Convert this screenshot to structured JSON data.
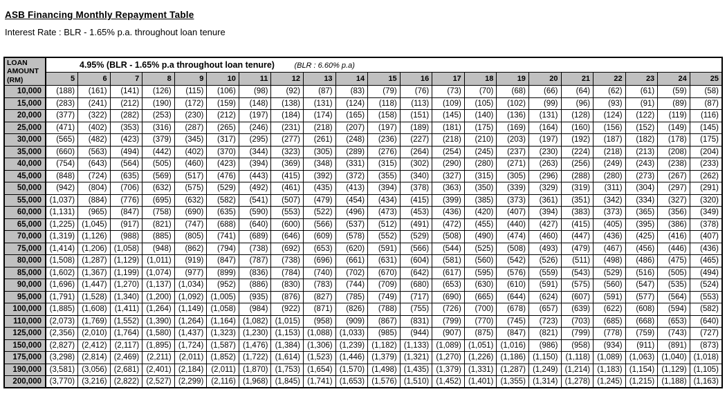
{
  "page": {
    "title": "ASB Financing Monthly Repayment Table",
    "subtitle": "Interest Rate : BLR - 1.65% p.a. throughout loan tenure"
  },
  "colors": {
    "header_bg": "#c0c0c0",
    "border": "#000000",
    "text": "#000000",
    "page_bg": "#ffffff"
  },
  "table": {
    "corner_header": "LOAN\nAMOUNT\n(RM)",
    "rate_header": "4.95% (BLR - 1.65% p.a throughout loan tenure)",
    "blr_note": "(BLR : 6.60% p.a)",
    "tenure_years": [
      "5",
      "6",
      "7",
      "8",
      "9",
      "10",
      "11",
      "12",
      "13",
      "14",
      "15",
      "16",
      "17",
      "18",
      "19",
      "20",
      "21",
      "22",
      "23",
      "24",
      "25"
    ],
    "rows": [
      {
        "amount": "10,000",
        "values": [
          "(188)",
          "(161)",
          "(141)",
          "(126)",
          "(115)",
          "(106)",
          "(98)",
          "(92)",
          "(87)",
          "(83)",
          "(79)",
          "(76)",
          "(73)",
          "(70)",
          "(68)",
          "(66)",
          "(64)",
          "(62)",
          "(61)",
          "(59)",
          "(58)"
        ]
      },
      {
        "amount": "15,000",
        "values": [
          "(283)",
          "(241)",
          "(212)",
          "(190)",
          "(172)",
          "(159)",
          "(148)",
          "(138)",
          "(131)",
          "(124)",
          "(118)",
          "(113)",
          "(109)",
          "(105)",
          "(102)",
          "(99)",
          "(96)",
          "(93)",
          "(91)",
          "(89)",
          "(87)"
        ]
      },
      {
        "amount": "20,000",
        "values": [
          "(377)",
          "(322)",
          "(282)",
          "(253)",
          "(230)",
          "(212)",
          "(197)",
          "(184)",
          "(174)",
          "(165)",
          "(158)",
          "(151)",
          "(145)",
          "(140)",
          "(136)",
          "(131)",
          "(128)",
          "(124)",
          "(122)",
          "(119)",
          "(116)"
        ]
      },
      {
        "amount": "25,000",
        "values": [
          "(471)",
          "(402)",
          "(353)",
          "(316)",
          "(287)",
          "(265)",
          "(246)",
          "(231)",
          "(218)",
          "(207)",
          "(197)",
          "(189)",
          "(181)",
          "(175)",
          "(169)",
          "(164)",
          "(160)",
          "(156)",
          "(152)",
          "(149)",
          "(145)"
        ]
      },
      {
        "amount": "30,000",
        "values": [
          "(565)",
          "(482)",
          "(423)",
          "(379)",
          "(345)",
          "(317)",
          "(295)",
          "(277)",
          "(261)",
          "(248)",
          "(236)",
          "(227)",
          "(218)",
          "(210)",
          "(203)",
          "(197)",
          "(192)",
          "(187)",
          "(182)",
          "(178)",
          "(175)"
        ]
      },
      {
        "amount": "35,000",
        "values": [
          "(660)",
          "(563)",
          "(494)",
          "(442)",
          "(402)",
          "(370)",
          "(344)",
          "(323)",
          "(305)",
          "(289)",
          "(276)",
          "(264)",
          "(254)",
          "(245)",
          "(237)",
          "(230)",
          "(224)",
          "(218)",
          "(213)",
          "(208)",
          "(204)"
        ]
      },
      {
        "amount": "40,000",
        "values": [
          "(754)",
          "(643)",
          "(564)",
          "(505)",
          "(460)",
          "(423)",
          "(394)",
          "(369)",
          "(348)",
          "(331)",
          "(315)",
          "(302)",
          "(290)",
          "(280)",
          "(271)",
          "(263)",
          "(256)",
          "(249)",
          "(243)",
          "(238)",
          "(233)"
        ]
      },
      {
        "amount": "45,000",
        "values": [
          "(848)",
          "(724)",
          "(635)",
          "(569)",
          "(517)",
          "(476)",
          "(443)",
          "(415)",
          "(392)",
          "(372)",
          "(355)",
          "(340)",
          "(327)",
          "(315)",
          "(305)",
          "(296)",
          "(288)",
          "(280)",
          "(273)",
          "(267)",
          "(262)"
        ]
      },
      {
        "amount": "50,000",
        "values": [
          "(942)",
          "(804)",
          "(706)",
          "(632)",
          "(575)",
          "(529)",
          "(492)",
          "(461)",
          "(435)",
          "(413)",
          "(394)",
          "(378)",
          "(363)",
          "(350)",
          "(339)",
          "(329)",
          "(319)",
          "(311)",
          "(304)",
          "(297)",
          "(291)"
        ]
      },
      {
        "amount": "55,000",
        "values": [
          "(1,037)",
          "(884)",
          "(776)",
          "(695)",
          "(632)",
          "(582)",
          "(541)",
          "(507)",
          "(479)",
          "(454)",
          "(434)",
          "(415)",
          "(399)",
          "(385)",
          "(373)",
          "(361)",
          "(351)",
          "(342)",
          "(334)",
          "(327)",
          "(320)"
        ]
      },
      {
        "amount": "60,000",
        "values": [
          "(1,131)",
          "(965)",
          "(847)",
          "(758)",
          "(690)",
          "(635)",
          "(590)",
          "(553)",
          "(522)",
          "(496)",
          "(473)",
          "(453)",
          "(436)",
          "(420)",
          "(407)",
          "(394)",
          "(383)",
          "(373)",
          "(365)",
          "(356)",
          "(349)"
        ]
      },
      {
        "amount": "65,000",
        "values": [
          "(1,225)",
          "(1,045)",
          "(917)",
          "(821)",
          "(747)",
          "(688)",
          "(640)",
          "(600)",
          "(566)",
          "(537)",
          "(512)",
          "(491)",
          "(472)",
          "(455)",
          "(440)",
          "(427)",
          "(415)",
          "(405)",
          "(395)",
          "(386)",
          "(378)"
        ]
      },
      {
        "amount": "70,000",
        "values": [
          "(1,319)",
          "(1,126)",
          "(988)",
          "(885)",
          "(805)",
          "(741)",
          "(689)",
          "(646)",
          "(609)",
          "(578)",
          "(552)",
          "(529)",
          "(508)",
          "(490)",
          "(474)",
          "(460)",
          "(447)",
          "(436)",
          "(425)",
          "(416)",
          "(407)"
        ]
      },
      {
        "amount": "75,000",
        "values": [
          "(1,414)",
          "(1,206)",
          "(1,058)",
          "(948)",
          "(862)",
          "(794)",
          "(738)",
          "(692)",
          "(653)",
          "(620)",
          "(591)",
          "(566)",
          "(544)",
          "(525)",
          "(508)",
          "(493)",
          "(479)",
          "(467)",
          "(456)",
          "(446)",
          "(436)"
        ]
      },
      {
        "amount": "80,000",
        "values": [
          "(1,508)",
          "(1,287)",
          "(1,129)",
          "(1,011)",
          "(919)",
          "(847)",
          "(787)",
          "(738)",
          "(696)",
          "(661)",
          "(631)",
          "(604)",
          "(581)",
          "(560)",
          "(542)",
          "(526)",
          "(511)",
          "(498)",
          "(486)",
          "(475)",
          "(465)"
        ]
      },
      {
        "amount": "85,000",
        "values": [
          "(1,602)",
          "(1,367)",
          "(1,199)",
          "(1,074)",
          "(977)",
          "(899)",
          "(836)",
          "(784)",
          "(740)",
          "(702)",
          "(670)",
          "(642)",
          "(617)",
          "(595)",
          "(576)",
          "(559)",
          "(543)",
          "(529)",
          "(516)",
          "(505)",
          "(494)"
        ]
      },
      {
        "amount": "90,000",
        "values": [
          "(1,696)",
          "(1,447)",
          "(1,270)",
          "(1,137)",
          "(1,034)",
          "(952)",
          "(886)",
          "(830)",
          "(783)",
          "(744)",
          "(709)",
          "(680)",
          "(653)",
          "(630)",
          "(610)",
          "(591)",
          "(575)",
          "(560)",
          "(547)",
          "(535)",
          "(524)"
        ]
      },
      {
        "amount": "95,000",
        "values": [
          "(1,791)",
          "(1,528)",
          "(1,340)",
          "(1,200)",
          "(1,092)",
          "(1,005)",
          "(935)",
          "(876)",
          "(827)",
          "(785)",
          "(749)",
          "(717)",
          "(690)",
          "(665)",
          "(644)",
          "(624)",
          "(607)",
          "(591)",
          "(577)",
          "(564)",
          "(553)"
        ]
      },
      {
        "amount": "100,000",
        "values": [
          "(1,885)",
          "(1,608)",
          "(1,411)",
          "(1,264)",
          "(1,149)",
          "(1,058)",
          "(984)",
          "(922)",
          "(871)",
          "(826)",
          "(788)",
          "(755)",
          "(726)",
          "(700)",
          "(678)",
          "(657)",
          "(639)",
          "(622)",
          "(608)",
          "(594)",
          "(582)"
        ]
      },
      {
        "amount": "110,000",
        "values": [
          "(2,073)",
          "(1,769)",
          "(1,552)",
          "(1,390)",
          "(1,264)",
          "(1,164)",
          "(1,082)",
          "(1,015)",
          "(958)",
          "(909)",
          "(867)",
          "(831)",
          "(799)",
          "(770)",
          "(745)",
          "(723)",
          "(703)",
          "(685)",
          "(668)",
          "(653)",
          "(640)"
        ]
      },
      {
        "amount": "125,000",
        "values": [
          "(2,356)",
          "(2,010)",
          "(1,764)",
          "(1,580)",
          "(1,437)",
          "(1,323)",
          "(1,230)",
          "(1,153)",
          "(1,088)",
          "(1,033)",
          "(985)",
          "(944)",
          "(907)",
          "(875)",
          "(847)",
          "(821)",
          "(799)",
          "(778)",
          "(759)",
          "(743)",
          "(727)"
        ]
      },
      {
        "amount": "150,000",
        "values": [
          "(2,827)",
          "(2,412)",
          "(2,117)",
          "(1,895)",
          "(1,724)",
          "(1,587)",
          "(1,476)",
          "(1,384)",
          "(1,306)",
          "(1,239)",
          "(1,182)",
          "(1,133)",
          "(1,089)",
          "(1,051)",
          "(1,016)",
          "(986)",
          "(958)",
          "(934)",
          "(911)",
          "(891)",
          "(873)"
        ]
      },
      {
        "amount": "175,000",
        "values": [
          "(3,298)",
          "(2,814)",
          "(2,469)",
          "(2,211)",
          "(2,011)",
          "(1,852)",
          "(1,722)",
          "(1,614)",
          "(1,523)",
          "(1,446)",
          "(1,379)",
          "(1,321)",
          "(1,270)",
          "(1,226)",
          "(1,186)",
          "(1,150)",
          "(1,118)",
          "(1,089)",
          "(1,063)",
          "(1,040)",
          "(1,018)"
        ]
      },
      {
        "amount": "190,000",
        "values": [
          "(3,581)",
          "(3,056)",
          "(2,681)",
          "(2,401)",
          "(2,184)",
          "(2,011)",
          "(1,870)",
          "(1,753)",
          "(1,654)",
          "(1,570)",
          "(1,498)",
          "(1,435)",
          "(1,379)",
          "(1,331)",
          "(1,287)",
          "(1,249)",
          "(1,214)",
          "(1,183)",
          "(1,154)",
          "(1,129)",
          "(1,105)"
        ]
      },
      {
        "amount": "200,000",
        "values": [
          "(3,770)",
          "(3,216)",
          "(2,822)",
          "(2,527)",
          "(2,299)",
          "(2,116)",
          "(1,968)",
          "(1,845)",
          "(1,741)",
          "(1,653)",
          "(1,576)",
          "(1,510)",
          "(1,452)",
          "(1,401)",
          "(1,355)",
          "(1,314)",
          "(1,278)",
          "(1,245)",
          "(1,215)",
          "(1,188)",
          "(1,163)"
        ]
      }
    ]
  }
}
